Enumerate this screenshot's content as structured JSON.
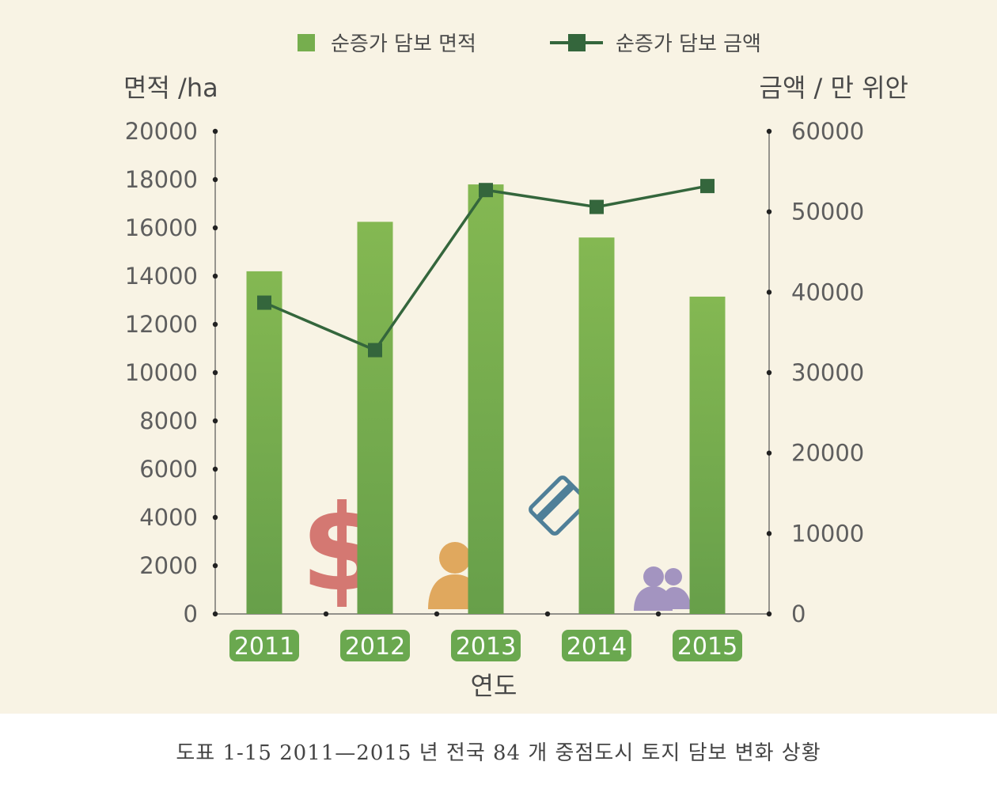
{
  "chart_data": {
    "type": "bar",
    "categories": [
      "2011",
      "2012",
      "2013",
      "2014",
      "2015"
    ],
    "series": [
      {
        "name": "순증가 담보 면적",
        "type": "bar",
        "axis": "left",
        "color": "#74ac4e",
        "values": [
          14200,
          16250,
          17800,
          15600,
          13150
        ]
      },
      {
        "name": "순증가 담보 금액",
        "type": "line",
        "axis": "right",
        "color": "#34663c",
        "values": [
          38700,
          32800,
          52700,
          50600,
          53200
        ]
      }
    ],
    "y_left": {
      "label": "면적 /ha",
      "ylim": [
        0,
        20000
      ],
      "ticks": [
        "0",
        "2000",
        "4000",
        "6000",
        "8000",
        "10000",
        "12000",
        "14000",
        "16000",
        "18000",
        "20000"
      ]
    },
    "y_right": {
      "label": "금액 / 만 위안",
      "ylim": [
        0,
        60000
      ],
      "ticks": [
        "0",
        "10000",
        "20000",
        "30000",
        "40000",
        "50000",
        "60000"
      ]
    },
    "xlabel": "연도",
    "legend_position": "top-center",
    "grid": false,
    "decorative_icons": [
      "dollar-icon",
      "person-icon",
      "credit-card-icon",
      "people-icon"
    ],
    "colors": {
      "background": "#f8f3e4",
      "bar_top": "#84b852",
      "bar_bottom": "#679f4a",
      "line": "#34663c",
      "year_badge": "#6aa84f",
      "dollar": "#d47872",
      "person": "#e0a85e",
      "card": "#4f7f98",
      "people": "#a394c0"
    }
  },
  "caption": "도표 1-15 2011—2015 년 전국 84 개 중점도시 토지 담보 변화 상황"
}
